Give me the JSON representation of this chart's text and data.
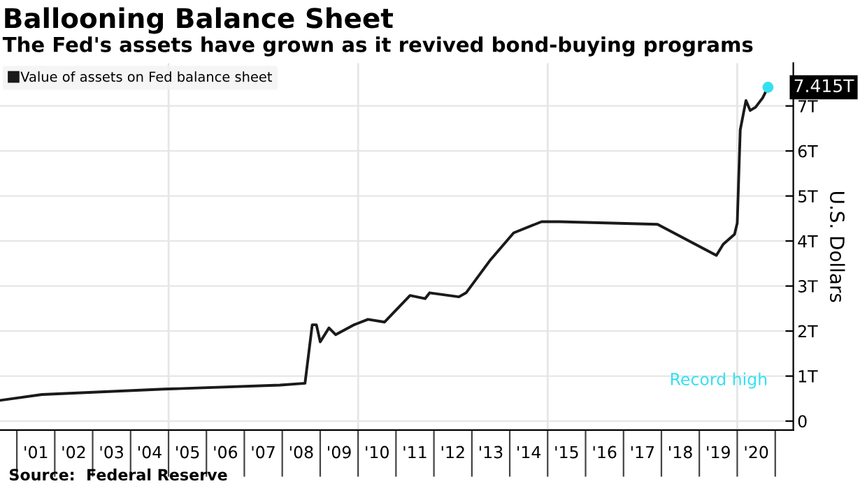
{
  "chart_data": {
    "type": "line",
    "title": "Ballooning Balance Sheet",
    "subtitle": "The Fed's assets have grown as it revived bond-buying programs",
    "ylabel": "U.S. Dollars",
    "annotations": [
      "Record high",
      "Source:  Federal Reserve"
    ],
    "series": [
      {
        "name": "Value of assets on Fed balance sheet",
        "color": "#1a1a1a",
        "x": [
          "2000-07-22",
          "2001-08-29",
          "2004-11-13",
          "2007-12-09",
          "2008-08-07",
          "2008-10-16",
          "2008-11-25",
          "2009-01-01",
          "2009-03-26",
          "2009-05-30",
          "2009-11-24",
          "2010-04-06",
          "2010-09-13",
          "2011-05-16",
          "2011-10-08",
          "2011-11-21",
          "2012-08-29",
          "2012-11-06",
          "2013-06-21",
          "2014-02-07",
          "2014-11-03",
          "2015-04-28",
          "2017-11-24",
          "2019-06-14",
          "2019-08-19",
          "2019-12-06",
          "2020-01-01",
          "2020-01-30",
          "2020-03-25",
          "2020-05-05",
          "2020-06-25",
          "2020-09-02",
          "2020-10-23"
        ],
        "values": [
          0.46,
          0.59,
          0.71,
          0.8,
          0.84,
          2.14,
          2.14,
          1.76,
          2.07,
          1.92,
          2.14,
          2.26,
          2.2,
          2.79,
          2.72,
          2.85,
          2.76,
          2.85,
          3.56,
          4.18,
          4.43,
          4.43,
          4.37,
          3.68,
          3.93,
          4.15,
          4.4,
          6.47,
          7.12,
          6.9,
          6.97,
          7.18,
          7.415
        ]
      },
      {
        "type": "scatter",
        "marker": "circle",
        "color": "#33e0f0",
        "x": [
          "2020-10-23"
        ],
        "values": [
          7.415
        ],
        "value_labels": [
          "7.415T"
        ]
      }
    ],
    "xlim": [
      "2000-07-22",
      "2021-06-24"
    ],
    "ylim": [
      -0.2,
      7.95
    ],
    "xticks": [
      {
        "value": "2001-07-02",
        "label": "'01"
      },
      {
        "value": "2002-07-02",
        "label": "'02"
      },
      {
        "value": "2003-07-02",
        "label": "'03"
      },
      {
        "value": "2004-07-02",
        "label": "'04"
      },
      {
        "value": "2005-07-02",
        "label": "'05"
      },
      {
        "value": "2006-07-02",
        "label": "'06"
      },
      {
        "value": "2007-07-02",
        "label": "'07"
      },
      {
        "value": "2008-07-02",
        "label": "'08"
      },
      {
        "value": "2009-07-02",
        "label": "'09"
      },
      {
        "value": "2010-07-02",
        "label": "'10"
      },
      {
        "value": "2011-07-02",
        "label": "'11"
      },
      {
        "value": "2012-07-02",
        "label": "'12"
      },
      {
        "value": "2013-07-02",
        "label": "'13"
      },
      {
        "value": "2014-07-02",
        "label": "'14"
      },
      {
        "value": "2015-07-02",
        "label": "'15"
      },
      {
        "value": "2016-07-02",
        "label": "'16"
      },
      {
        "value": "2017-07-02",
        "label": "'17"
      },
      {
        "value": "2018-07-02",
        "label": "'18"
      },
      {
        "value": "2019-07-02",
        "label": "'19"
      },
      {
        "value": "2020-07-02",
        "label": "'20"
      }
    ],
    "yticks": [
      0,
      {
        "value": 1,
        "label": "1T"
      },
      {
        "value": 2,
        "label": "2T"
      },
      {
        "value": 3,
        "label": "3T"
      },
      {
        "value": 4,
        "label": "4T"
      },
      {
        "value": 5,
        "label": "5T"
      },
      {
        "value": 6,
        "label": "6T"
      },
      {
        "value": 7,
        "label": "7T"
      }
    ],
    "ref_lines": [
      {
        "axis": "x",
        "value": "2005-01-01",
        "color": "#e6e6e6"
      },
      {
        "axis": "x",
        "value": "2010-01-01",
        "color": "#e6e6e6"
      },
      {
        "axis": "x",
        "value": "2015-01-01",
        "color": "#e6e6e6"
      },
      {
        "axis": "x",
        "value": "2020-01-01",
        "color": "#e6e6e6"
      }
    ],
    "grid": "y",
    "legend": "top left",
    "marker": "none",
    "line_style": "solid"
  }
}
